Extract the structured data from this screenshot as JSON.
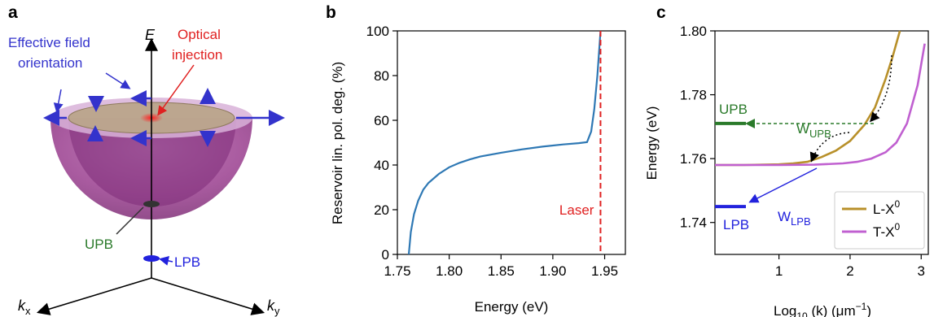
{
  "panels": {
    "a": {
      "panel_label": "a",
      "energy_axis": "E",
      "kx": "k",
      "kx_sub": "x",
      "ky": "k",
      "ky_sub": "y",
      "effective_field_line1": "Effective field",
      "effective_field_line2": "orientation",
      "optical_line1": "Optical",
      "optical_line2": "injection",
      "upb": "UPB",
      "lpb": "LPB",
      "colors": {
        "field": "#3333cc",
        "optical": "#e02020",
        "upb": "#2a7a2a",
        "lpb": "#2222dd",
        "bowl": "#a04a9a"
      }
    },
    "c_annotations": {
      "upb": "UPB",
      "lpb": "LPB",
      "w": "W",
      "w_upb_sub": "UPB",
      "w_lpb_sub": "LPB",
      "l_x": "L-X",
      "t_x": "T-X",
      "superscript": "0"
    }
  },
  "chart_data": [
    {
      "type": "line",
      "panel_label": "b",
      "xlabel": "Energy (eV)",
      "ylabel": "Reservoir lin. pol. deg. (%)",
      "xlim": [
        1.75,
        1.97
      ],
      "ylim": [
        0,
        100
      ],
      "xticks": [
        "1.75",
        "1.80",
        "1.85",
        "1.90",
        "1.95"
      ],
      "xtick_values": [
        1.75,
        1.8,
        1.85,
        1.9,
        1.95
      ],
      "yticks": [
        "0",
        "20",
        "40",
        "60",
        "80",
        "100"
      ],
      "ytick_values": [
        0,
        20,
        40,
        60,
        80,
        100
      ],
      "series": [
        {
          "color": "#2e78b4",
          "x": [
            1.761,
            1.763,
            1.766,
            1.77,
            1.775,
            1.78,
            1.79,
            1.8,
            1.81,
            1.82,
            1.83,
            1.85,
            1.87,
            1.89,
            1.91,
            1.925,
            1.933,
            1.937,
            1.94,
            1.943,
            1.946
          ],
          "y": [
            0,
            10,
            18,
            24,
            29,
            32,
            36,
            39,
            41,
            42.5,
            43.8,
            45.5,
            47,
            48.2,
            49.2,
            49.8,
            50.2,
            55,
            65,
            80,
            100
          ]
        }
      ],
      "vline": {
        "x": 1.946,
        "label": "Laser",
        "color": "#e02020"
      }
    },
    {
      "type": "line",
      "panel_label": "c",
      "xlabel_main": "Log",
      "xlabel_sub": "10",
      "xlabel_rest": " (k) (μm",
      "xlabel_sup": "−1",
      "xlabel_end": ")",
      "ylabel": "Energy (eV)",
      "xlim": [
        0.1,
        3.1
      ],
      "ylim": [
        1.73,
        1.8
      ],
      "xticks": [
        "1",
        "2",
        "3"
      ],
      "xtick_values": [
        1,
        2,
        3
      ],
      "yticks": [
        "1.74",
        "1.76",
        "1.78",
        "1.80"
      ],
      "ytick_values": [
        1.74,
        1.76,
        1.78,
        1.8
      ],
      "series": [
        {
          "name": "L-X0",
          "color": "#b8902a",
          "x": [
            0.1,
            0.5,
            1.0,
            1.2,
            1.4,
            1.6,
            1.8,
            2.0,
            2.2,
            2.35,
            2.5,
            2.6,
            2.7
          ],
          "y": [
            1.758,
            1.758,
            1.7582,
            1.7585,
            1.759,
            1.7605,
            1.7625,
            1.7655,
            1.7705,
            1.776,
            1.785,
            1.792,
            1.8
          ]
        },
        {
          "name": "T-X0",
          "color": "#c060d0",
          "x": [
            0.1,
            0.5,
            1.0,
            1.5,
            1.9,
            2.1,
            2.3,
            2.5,
            2.65,
            2.8,
            2.95,
            3.05
          ],
          "y": [
            1.758,
            1.758,
            1.758,
            1.7581,
            1.7585,
            1.759,
            1.76,
            1.762,
            1.765,
            1.771,
            1.783,
            1.796
          ]
        }
      ],
      "levels": [
        {
          "label": "UPB",
          "y": 1.771,
          "color": "#2a7a2a"
        },
        {
          "label": "LPB",
          "y": 1.745,
          "color": "#2222dd"
        }
      ]
    }
  ]
}
